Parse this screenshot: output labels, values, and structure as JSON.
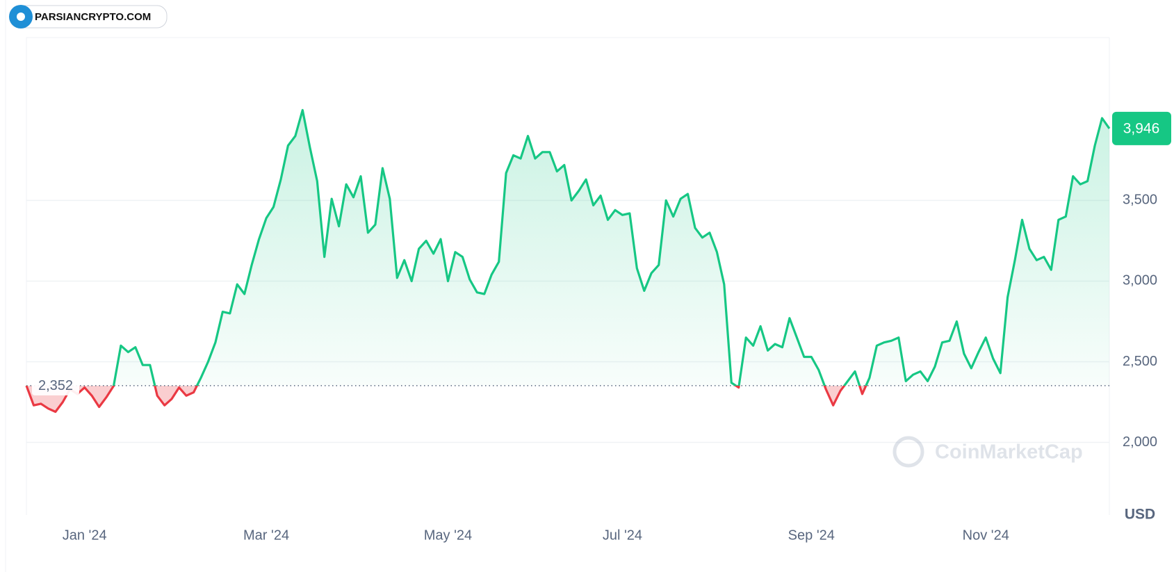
{
  "logo": "PARSIANCRYPTO.COM",
  "chart_data": {
    "type": "line",
    "watermark": "CoinMarketCap",
    "y_unit": "USD",
    "color": "#16c784",
    "down_color": "#ea3943",
    "baseline": {
      "value": 2352,
      "label": "2,352"
    },
    "last_price_label": "3,946",
    "ylim": [
      1550,
      4510
    ],
    "yticks": [
      {
        "value": 2000,
        "label": "2,000"
      },
      {
        "value": 2500,
        "label": "2,500"
      },
      {
        "value": 3000,
        "label": "3,000"
      },
      {
        "value": 3500,
        "label": "3,500"
      }
    ],
    "grid": true,
    "categories": [
      null,
      null,
      null,
      null,
      null,
      null,
      null,
      null,
      "Jan '24",
      null,
      null,
      null,
      null,
      null,
      null,
      null,
      null,
      null,
      null,
      null,
      null,
      null,
      null,
      null,
      null,
      null,
      null,
      null,
      null,
      null,
      null,
      null,
      null,
      "Mar '24",
      null,
      null,
      null,
      null,
      null,
      null,
      null,
      null,
      null,
      null,
      null,
      null,
      null,
      null,
      null,
      null,
      null,
      null,
      null,
      null,
      null,
      null,
      null,
      null,
      "May '24",
      null,
      null,
      null,
      null,
      null,
      null,
      null,
      null,
      null,
      null,
      null,
      null,
      null,
      null,
      null,
      null,
      null,
      null,
      null,
      null,
      null,
      null,
      null,
      "Jul '24",
      null,
      null,
      null,
      null,
      null,
      null,
      null,
      null,
      null,
      null,
      null,
      null,
      null,
      null,
      null,
      null,
      null,
      null,
      null,
      null,
      null,
      null,
      null,
      null,
      null,
      "Sep '24",
      null,
      null,
      null,
      null,
      null,
      null,
      null,
      null,
      null,
      null,
      null,
      null,
      null,
      null,
      null,
      null,
      null,
      null,
      null,
      null,
      null,
      null,
      null,
      "Nov '24",
      null,
      null,
      null,
      null,
      null,
      null,
      null,
      null,
      null,
      null,
      null,
      null,
      null,
      null,
      null,
      null,
      null
    ],
    "values": [
      2352,
      2230,
      2240,
      2210,
      2190,
      2250,
      2330,
      2300,
      2340,
      2290,
      2220,
      2280,
      2350,
      2600,
      2560,
      2590,
      2480,
      2480,
      2290,
      2230,
      2270,
      2340,
      2290,
      2310,
      2400,
      2500,
      2620,
      2810,
      2800,
      2980,
      2920,
      3100,
      3260,
      3390,
      3460,
      3630,
      3840,
      3900,
      4060,
      3830,
      3620,
      3150,
      3510,
      3340,
      3600,
      3520,
      3650,
      3300,
      3350,
      3700,
      3510,
      3020,
      3130,
      3000,
      3200,
      3250,
      3170,
      3260,
      3000,
      3180,
      3150,
      3010,
      2930,
      2920,
      3040,
      3120,
      3670,
      3780,
      3760,
      3900,
      3760,
      3800,
      3800,
      3680,
      3720,
      3500,
      3560,
      3630,
      3470,
      3530,
      3380,
      3440,
      3410,
      3420,
      3080,
      2940,
      3050,
      3100,
      3500,
      3400,
      3510,
      3540,
      3330,
      3270,
      3300,
      3180,
      2980,
      2370,
      2340,
      2650,
      2600,
      2720,
      2570,
      2610,
      2590,
      2770,
      2650,
      2530,
      2530,
      2450,
      2330,
      2230,
      2320,
      2380,
      2440,
      2300,
      2400,
      2600,
      2620,
      2630,
      2650,
      2380,
      2420,
      2440,
      2380,
      2470,
      2620,
      2630,
      2750,
      2550,
      2460,
      2560,
      2650,
      2520,
      2430,
      2900,
      3130,
      3380,
      3200,
      3130,
      3150,
      3070,
      3380,
      3400,
      3650,
      3600,
      3620,
      3840,
      4010,
      3946
    ]
  }
}
